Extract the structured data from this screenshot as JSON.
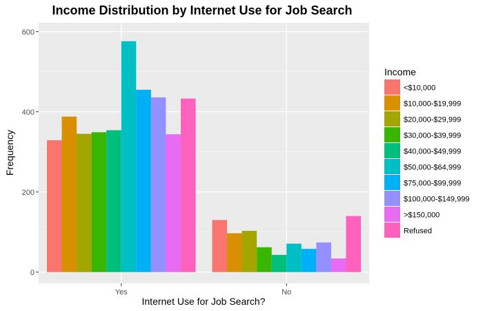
{
  "chart_data": {
    "type": "bar",
    "title": "Income Distribution by Internet Use for Job Search",
    "xlabel": "Internet Use for Job Search?",
    "ylabel": "Frequency",
    "categories": [
      "Yes",
      "No"
    ],
    "yticks": [
      0,
      200,
      400,
      600
    ],
    "ylim": [
      -28,
      622
    ],
    "grid": true,
    "legend_title": "Income",
    "legend_position": "right",
    "series": [
      {
        "name": "<$10,000",
        "color": "#F8766D",
        "values": [
          329,
          130
        ]
      },
      {
        "name": "$10,000-$19,999",
        "color": "#D89000",
        "values": [
          388,
          97
        ]
      },
      {
        "name": "$20,000-$29,999",
        "color": "#A3A500",
        "values": [
          345,
          103
        ]
      },
      {
        "name": "$30,000-$39,999",
        "color": "#39B600",
        "values": [
          349,
          62
        ]
      },
      {
        "name": "$40,000-$49,999",
        "color": "#00BF7D",
        "values": [
          354,
          43
        ]
      },
      {
        "name": "$50,000-$64,999",
        "color": "#00BFC4",
        "values": [
          576,
          71
        ]
      },
      {
        "name": "$75,000-$99,999",
        "color": "#00B0F6",
        "values": [
          455,
          58
        ]
      },
      {
        "name": "$100,000-$149,999",
        "color": "#9590FF",
        "values": [
          436,
          74
        ]
      },
      {
        "name": ">$150,000",
        "color": "#E76BF3",
        "values": [
          344,
          34
        ]
      },
      {
        "name": "Refused",
        "color": "#FF62BC",
        "values": [
          433,
          140
        ]
      }
    ]
  }
}
